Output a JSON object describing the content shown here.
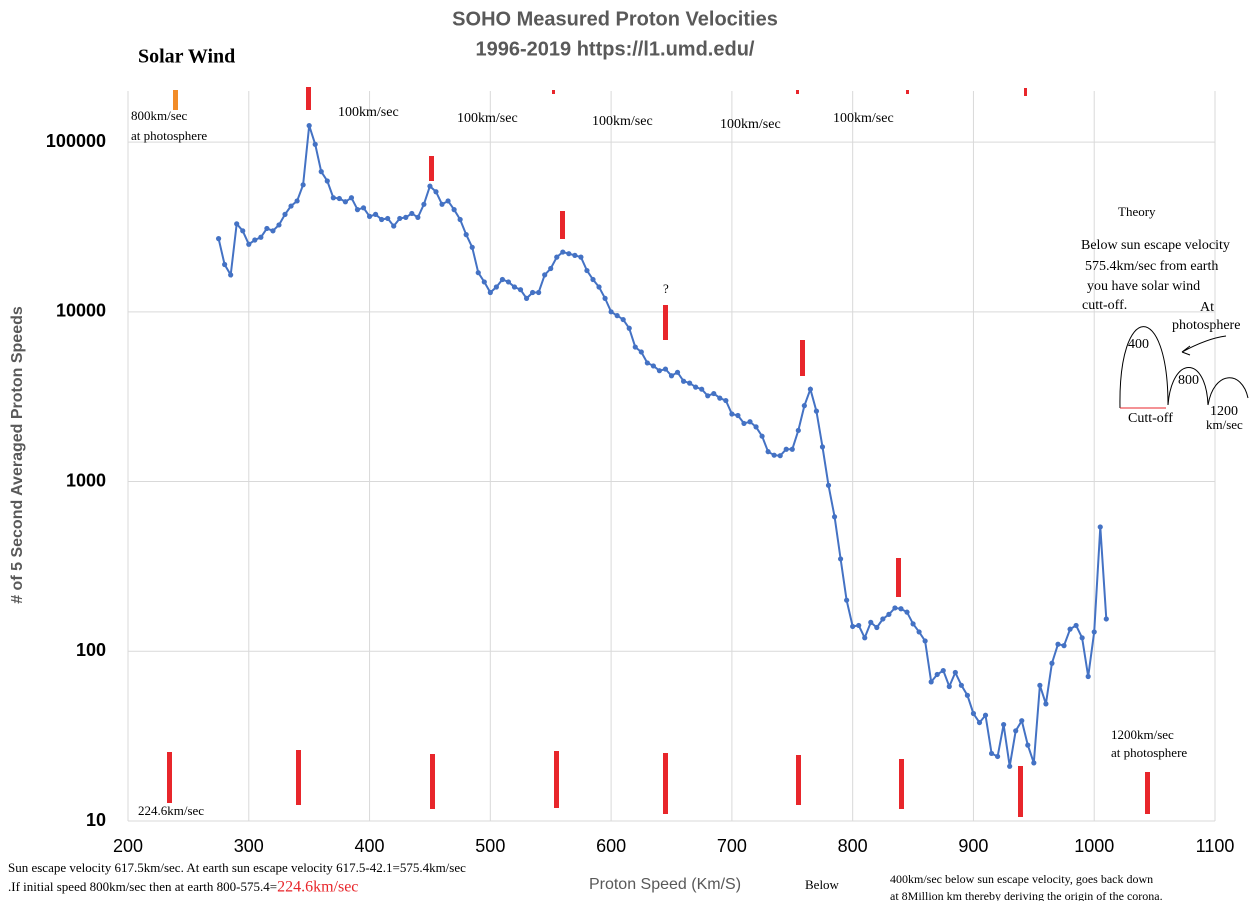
{
  "chart_data": {
    "type": "line",
    "title": "SOHO Measured Proton Velocities",
    "subtitle": "1996-2019 https://l1.umd.edu/",
    "label": "Solar Wind",
    "xlabel": "Proton Speed (Km/S)",
    "ylabel": "# of 5 Second Averaged Proton Speeds",
    "log_y": true,
    "grid": true,
    "xlim": [
      200,
      1100
    ],
    "xticks": [
      200,
      300,
      400,
      500,
      600,
      700,
      800,
      900,
      1000,
      1100
    ],
    "ylim": [
      10,
      200000
    ],
    "yticks": [
      10,
      100,
      1000,
      10000,
      100000
    ],
    "color": "#4472c4",
    "x": [
      275,
      280,
      285,
      290,
      295,
      300,
      305,
      310,
      315,
      320,
      325,
      330,
      335,
      340,
      345,
      350,
      355,
      360,
      365,
      370,
      375,
      380,
      385,
      390,
      395,
      400,
      405,
      410,
      415,
      420,
      425,
      430,
      435,
      440,
      445,
      450,
      455,
      460,
      465,
      470,
      475,
      480,
      485,
      490,
      495,
      500,
      505,
      510,
      515,
      520,
      525,
      530,
      535,
      540,
      545,
      550,
      555,
      560,
      565,
      570,
      575,
      580,
      585,
      590,
      595,
      600,
      605,
      610,
      615,
      620,
      625,
      630,
      635,
      640,
      645,
      650,
      655,
      660,
      665,
      670,
      675,
      680,
      685,
      690,
      695,
      700,
      705,
      710,
      715,
      720,
      725,
      730,
      735,
      740,
      745,
      750,
      755,
      760,
      765,
      770,
      775,
      780,
      785,
      790,
      795,
      800,
      805,
      810,
      815,
      820,
      825,
      830,
      835,
      840,
      845,
      850,
      855,
      860,
      865,
      870,
      875,
      880,
      885,
      890,
      895,
      900,
      905,
      910,
      915,
      920,
      925,
      930,
      935,
      940,
      945,
      950,
      955,
      960,
      965,
      970,
      975,
      980,
      985,
      990,
      995,
      1000,
      1005,
      1010
    ],
    "values": [
      27000,
      19000,
      16500,
      33000,
      30000,
      25000,
      26500,
      27500,
      31000,
      30000,
      32500,
      37500,
      42000,
      45000,
      56000,
      125000,
      97000,
      67000,
      59000,
      47000,
      46500,
      44500,
      47000,
      40000,
      41000,
      36500,
      37500,
      35000,
      35500,
      32000,
      35500,
      36000,
      38000,
      36000,
      43000,
      55000,
      51000,
      43000,
      45000,
      40000,
      35000,
      28500,
      24000,
      17000,
      15000,
      13000,
      14000,
      15500,
      15000,
      14000,
      13500,
      12000,
      13000,
      13000,
      16500,
      18000,
      21000,
      22500,
      22000,
      21500,
      21000,
      17500,
      15500,
      14000,
      12000,
      10000,
      9500,
      9000,
      8000,
      6200,
      5800,
      5000,
      4800,
      4500,
      4600,
      4200,
      4400,
      3900,
      3800,
      3600,
      3500,
      3200,
      3300,
      3100,
      3000,
      2500,
      2450,
      2200,
      2250,
      2100,
      1850,
      1500,
      1430,
      1420,
      1550,
      1550,
      2000,
      2800,
      3500,
      2600,
      1600,
      950,
      620,
      350,
      200,
      140,
      142,
      120,
      148,
      138,
      155,
      165,
      180,
      178,
      170,
      145,
      130,
      115,
      66,
      73,
      77,
      62,
      75,
      63,
      55,
      43,
      38,
      42,
      25,
      24,
      37,
      21,
      34,
      39,
      28,
      22,
      63,
      49,
      85,
      110,
      108,
      135,
      142,
      120,
      71,
      130,
      540,
      155
    ],
    "annotations": [
      "800km/sec",
      "at photosphere",
      "100km/sec",
      "100km/sec",
      "100km/sec",
      "100km/sec",
      "100km/sec",
      "Theory",
      "Below sun escape velocity",
      "575.4km/sec from earth",
      "you have solar wind",
      "cutt-off.",
      "At",
      "photosphere",
      "400",
      "800",
      "1200",
      "km/sec",
      "Cutt-off",
      "?",
      "224.6km/sec",
      "1200km/sec",
      "at photosphere",
      "Below",
      "Sun escape velocity 617.5km/sec. At earth sun escape velocity 617.5-42.1=575.4km/sec",
      ".If initial speed 800km/sec then at earth  800-575.4=",
      "224.6km/sec",
      "400km/sec below   sun escape velocity, goes back down",
      "at 8Million km thereby deriving the origin of the corona."
    ]
  }
}
